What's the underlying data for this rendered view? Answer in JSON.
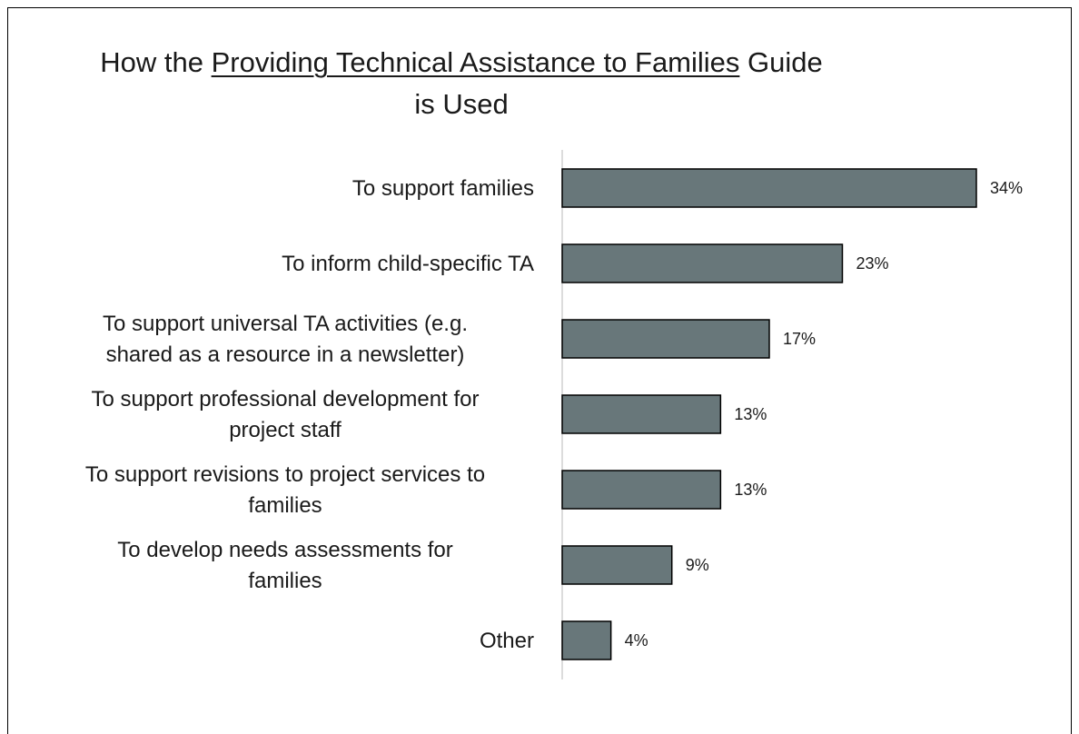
{
  "chart_data": {
    "type": "bar",
    "orientation": "horizontal",
    "title": {
      "prefix": "How the ",
      "underlined": "Providing Technical Assistance to Families",
      "suffix_line1": " Guide",
      "line2": "is Used"
    },
    "categories": [
      [
        "To support families"
      ],
      [
        "To inform child-specific TA"
      ],
      [
        "To support universal TA activities (e.g.",
        "shared as a resource in a newsletter)"
      ],
      [
        "To support professional development for",
        "project staff"
      ],
      [
        "To support revisions to project services to",
        "families"
      ],
      [
        "To develop needs assessments for",
        "families"
      ],
      [
        "Other"
      ]
    ],
    "values": [
      34,
      23,
      17,
      13,
      13,
      9,
      4
    ],
    "value_labels": [
      "34%",
      "23%",
      "17%",
      "13%",
      "13%",
      "9%",
      "4%"
    ],
    "unit": "%",
    "xlim": [
      0,
      34
    ],
    "grid": false,
    "legend": "none",
    "bar_color": "#68777a",
    "bar_stroke": "#000000",
    "axis_color": "#d0d0d0"
  }
}
